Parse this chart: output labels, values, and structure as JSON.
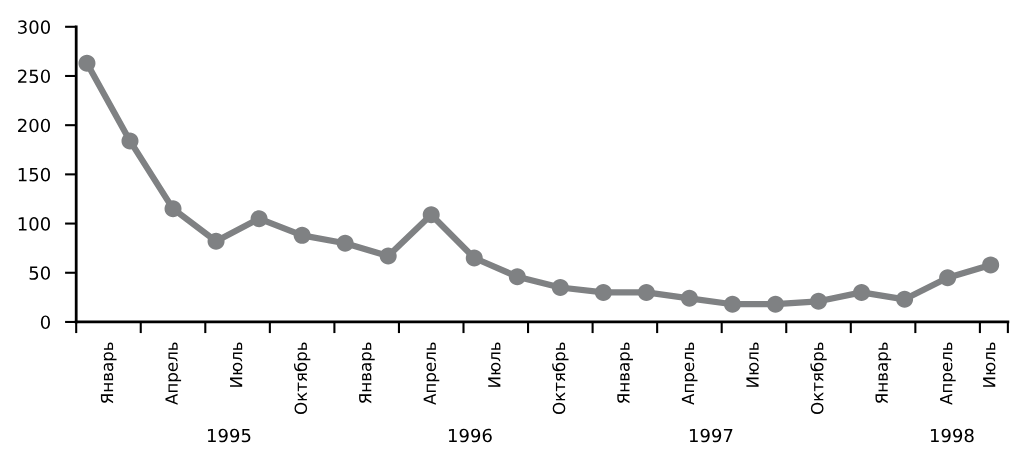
{
  "chart_data": {
    "type": "line",
    "categories": [
      null,
      "Январь",
      null,
      null,
      "Апрель",
      null,
      null,
      "Июль",
      null,
      null,
      "Октябрь",
      null,
      null,
      "Январь",
      null,
      null,
      "Апрель",
      null,
      null,
      "Июль",
      null,
      null,
      "Октябрь",
      null,
      null,
      "Январь",
      null,
      null,
      "Апрель",
      null,
      null,
      "Июль",
      null,
      null,
      "Октябрь",
      null,
      null,
      "Январь",
      null,
      null,
      "Апрель",
      null,
      "Июль"
    ],
    "series": [
      {
        "color": "#7f8183",
        "values": [
          263,
          null,
          184,
          null,
          115,
          null,
          82,
          null,
          105,
          null,
          88,
          null,
          80,
          null,
          67,
          null,
          109,
          null,
          65,
          null,
          46,
          null,
          35,
          null,
          30,
          null,
          30,
          null,
          24,
          null,
          18,
          null,
          18,
          null,
          21,
          null,
          30,
          null,
          23,
          null,
          45,
          null,
          58
        ]
      }
    ],
    "ylim": [
      0,
      300
    ],
    "yticks": [
      0,
      50,
      100,
      150,
      200,
      250,
      300
    ],
    "annotations": [
      "1995",
      "1996",
      "1997",
      "1998"
    ],
    "marker": "circle",
    "line_style": "solid",
    "grid": false
  }
}
